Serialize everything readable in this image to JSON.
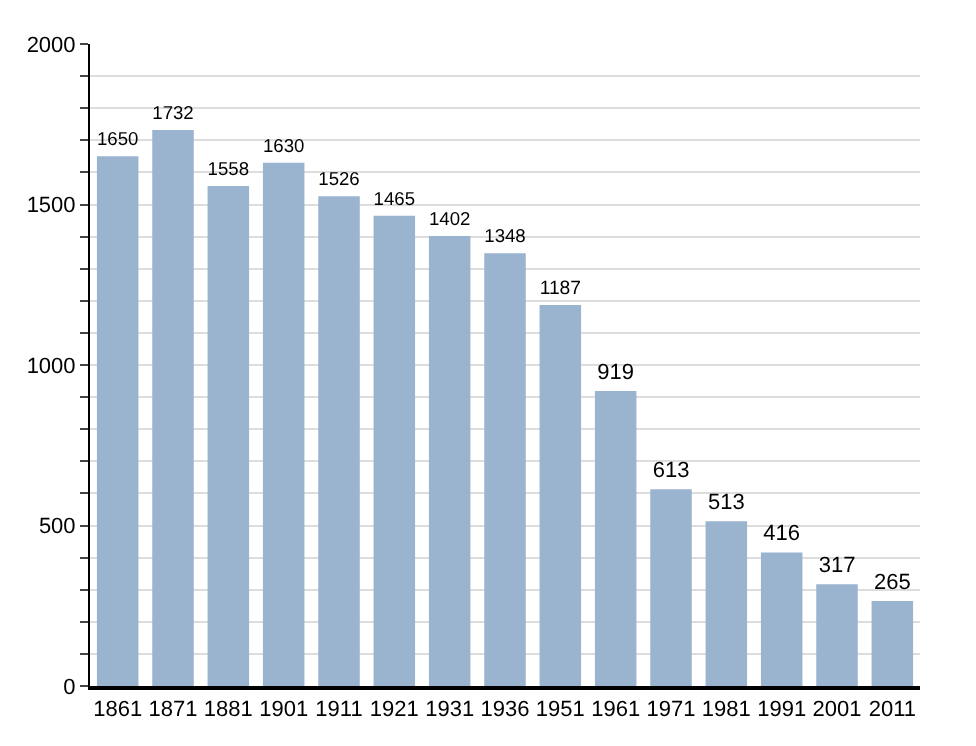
{
  "chart_data": {
    "type": "bar",
    "categories": [
      "1861",
      "1871",
      "1881",
      "1901",
      "1911",
      "1921",
      "1931",
      "1936",
      "1951",
      "1961",
      "1971",
      "1981",
      "1991",
      "2001",
      "2011"
    ],
    "values": [
      1650,
      1732,
      1558,
      1630,
      1526,
      1465,
      1402,
      1348,
      1187,
      919,
      613,
      513,
      416,
      317,
      265
    ],
    "color": "#9ab3cf",
    "data_labels": true,
    "grid": "y",
    "ylim": [
      0,
      2000
    ],
    "yticks": [
      0,
      {
        "value": 100,
        "label": null
      },
      {
        "value": 200,
        "label": null
      },
      {
        "value": 300,
        "label": null
      },
      {
        "value": 400,
        "label": null
      },
      500,
      {
        "value": 600,
        "label": null
      },
      {
        "value": 700,
        "label": null
      },
      {
        "value": 800,
        "label": null
      },
      {
        "value": 900,
        "label": null
      },
      1000,
      {
        "value": 1100,
        "label": null
      },
      {
        "value": 1200,
        "label": null
      },
      {
        "value": 1300,
        "label": null
      },
      {
        "value": 1400,
        "label": null
      },
      1500,
      {
        "value": 1600,
        "label": null
      },
      {
        "value": 1700,
        "label": null
      },
      {
        "value": 1800,
        "label": null
      },
      {
        "value": 1900,
        "label": null
      },
      2000
    ]
  }
}
